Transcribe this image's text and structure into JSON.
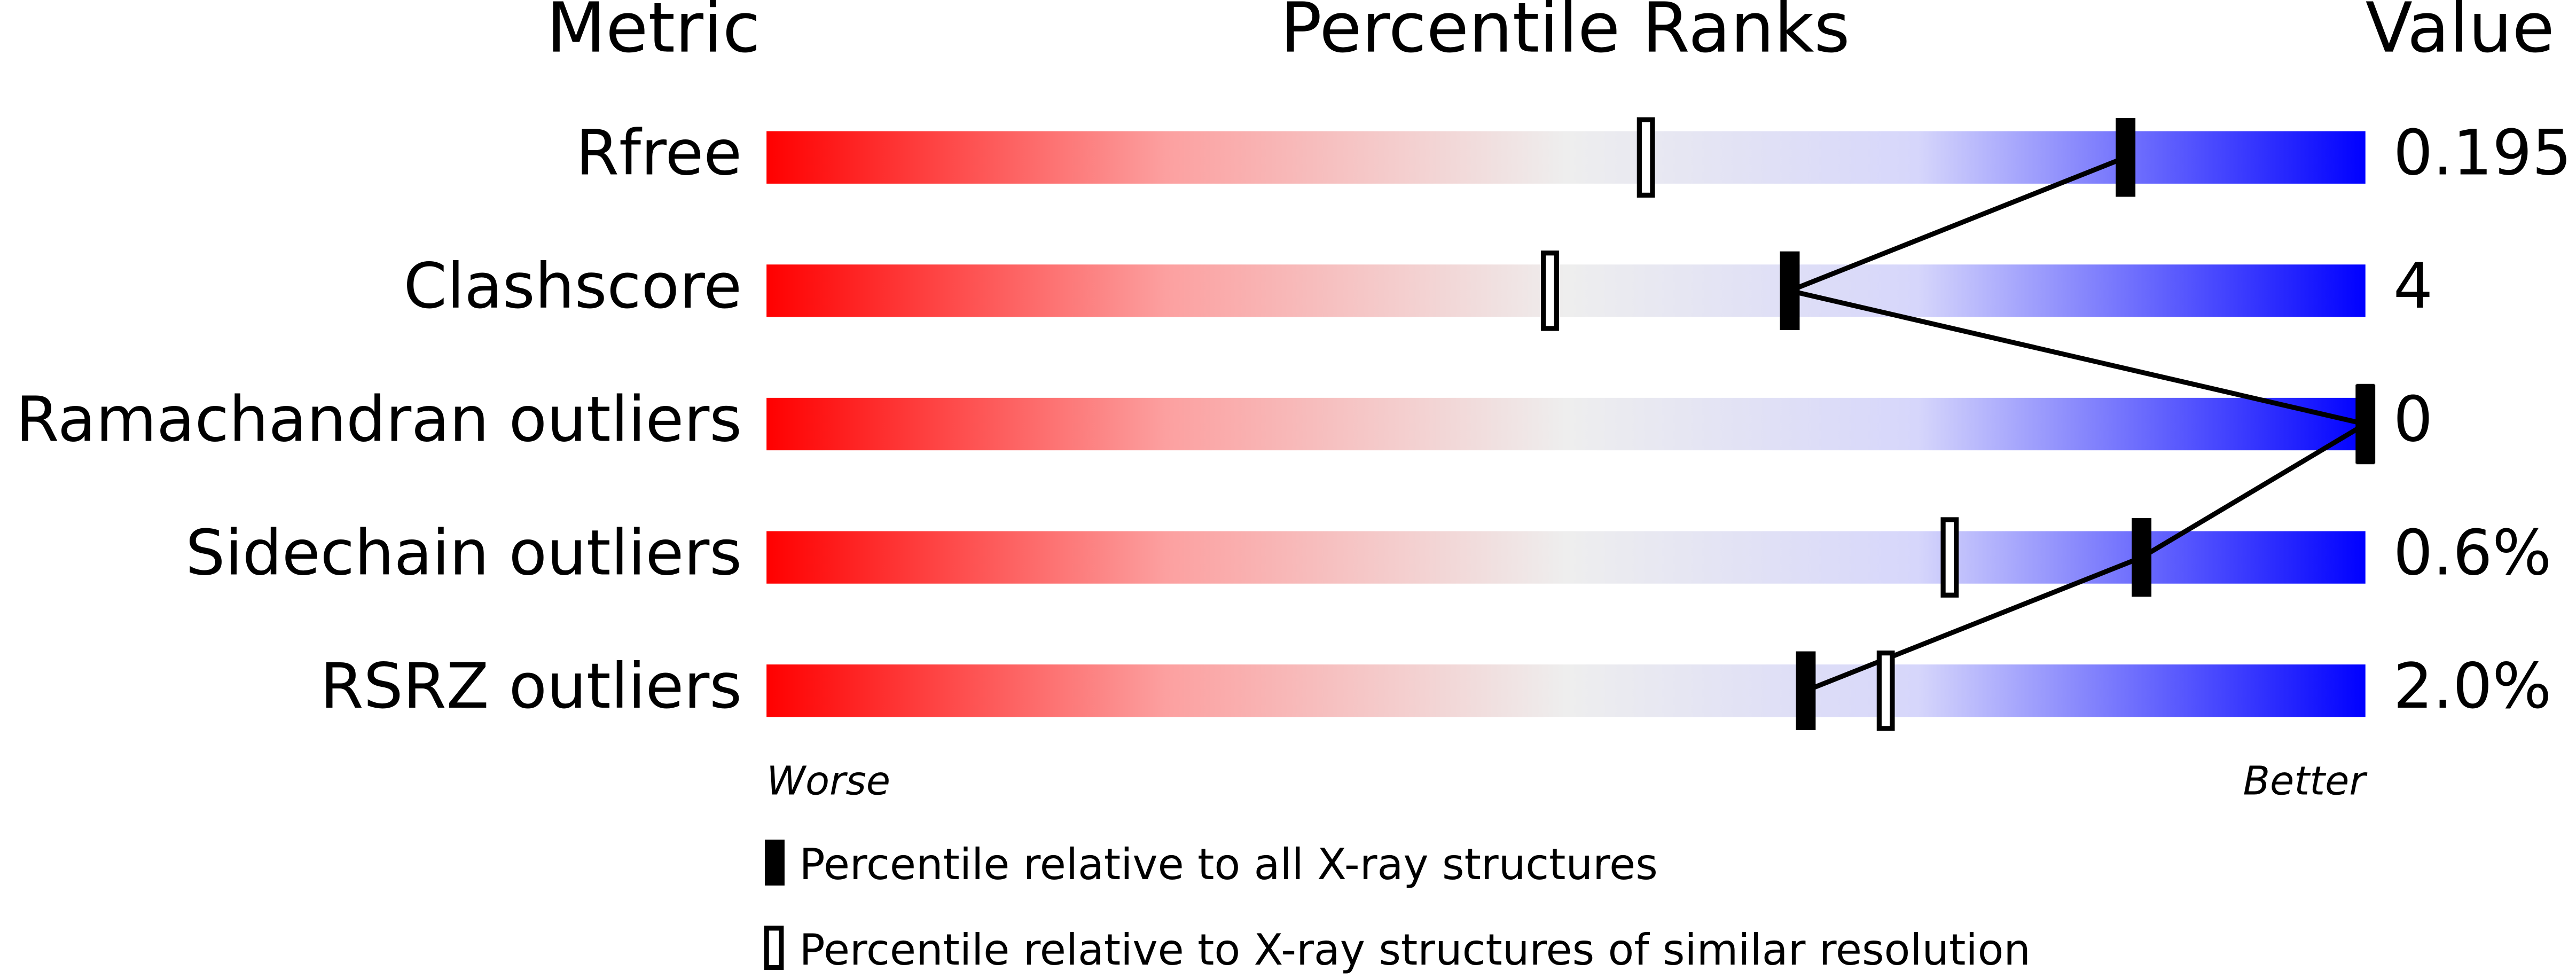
{
  "chart_data": {
    "type": "percentile-slider",
    "metric_header": "Metric",
    "title": "Percentile Ranks",
    "value_header": "Value",
    "categories": [
      "Rfree",
      "Clashscore",
      "Ramachandran outliers",
      "Sidechain outliers",
      "RSRZ outliers"
    ],
    "metric_values": [
      "0.195",
      "4",
      "0",
      "0.6%",
      "2.0%"
    ],
    "worse_label": "Worse",
    "better_label": "Better",
    "xlim": [
      0,
      100
    ],
    "series": [
      {
        "name": "Percentile relative to all X-ray structures",
        "color": "#000000",
        "values": [
          85,
          64,
          100,
          86,
          65
        ]
      },
      {
        "name": "Percentile relative to X-ray structures of similar resolution",
        "color": "#ffffff",
        "values": [
          55,
          49,
          100,
          74,
          70
        ]
      }
    ]
  }
}
